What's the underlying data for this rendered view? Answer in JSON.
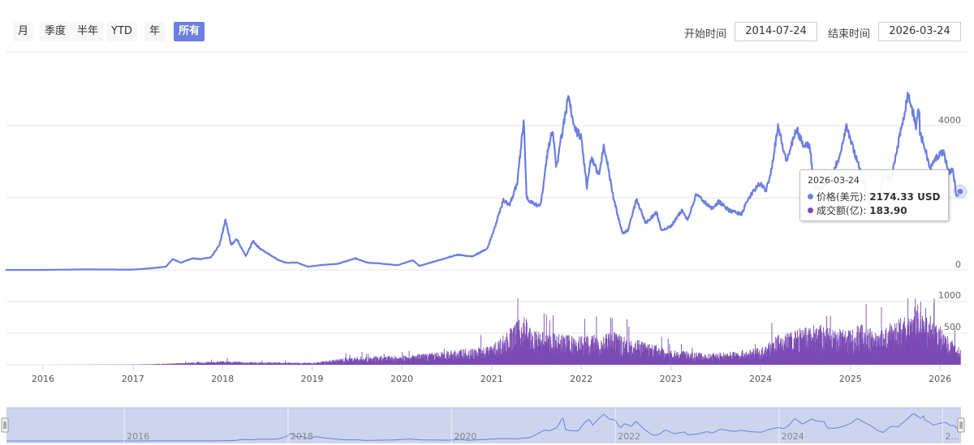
{
  "toolbar": {
    "ranges": [
      {
        "label": "月",
        "active": false
      },
      {
        "label": "季度",
        "active": false
      },
      {
        "label": "半年",
        "active": false
      },
      {
        "label": "YTD",
        "active": false
      },
      {
        "label": "年",
        "active": false
      },
      {
        "label": "所有",
        "active": true
      }
    ],
    "start_label": "开始时间",
    "start_value": "2014-07-24",
    "end_label": "结束时间",
    "end_value": "2026-03-24"
  },
  "tooltip": {
    "date": "2026-03-24",
    "price_label": "价格(美元):",
    "price_value": "2174.33 USD",
    "volume_label": "成交额(亿):",
    "volume_value": "183.90"
  },
  "colors": {
    "price": "#6a7fe0",
    "volume": "#7b4bb5",
    "active_button": "#6a7fe0",
    "navigator_mask": "#c9d3ec"
  },
  "chart_data": {
    "type": "line",
    "price_series": {
      "y_axis_ticks": [
        0,
        2000,
        4000
      ],
      "visible_tick_labels": [
        "0",
        "4000"
      ],
      "points": [
        [
          "2015-08-01",
          1
        ],
        [
          "2016-01-01",
          1
        ],
        [
          "2016-06-15",
          14
        ],
        [
          "2017-01-01",
          8
        ],
        [
          "2017-03-15",
          45
        ],
        [
          "2017-05-15",
          90
        ],
        [
          "2017-06-12",
          300
        ],
        [
          "2017-07-15",
          200
        ],
        [
          "2017-09-01",
          320
        ],
        [
          "2017-10-01",
          300
        ],
        [
          "2017-11-15",
          350
        ],
        [
          "2017-12-20",
          700
        ],
        [
          "2018-01-13",
          1390
        ],
        [
          "2018-02-05",
          700
        ],
        [
          "2018-03-01",
          850
        ],
        [
          "2018-04-06",
          380
        ],
        [
          "2018-05-05",
          800
        ],
        [
          "2018-06-01",
          600
        ],
        [
          "2018-08-15",
          280
        ],
        [
          "2018-09-15",
          200
        ],
        [
          "2018-11-01",
          200
        ],
        [
          "2018-12-15",
          90
        ],
        [
          "2019-02-15",
          140
        ],
        [
          "2019-04-15",
          170
        ],
        [
          "2019-06-26",
          320
        ],
        [
          "2019-08-15",
          200
        ],
        [
          "2019-10-01",
          180
        ],
        [
          "2019-12-15",
          130
        ],
        [
          "2020-02-15",
          270
        ],
        [
          "2020-03-13",
          110
        ],
        [
          "2020-05-01",
          210
        ],
        [
          "2020-08-15",
          420
        ],
        [
          "2020-10-15",
          370
        ],
        [
          "2020-12-15",
          600
        ],
        [
          "2021-01-15",
          1200
        ],
        [
          "2021-02-19",
          1950
        ],
        [
          "2021-03-15",
          1800
        ],
        [
          "2021-04-15",
          2400
        ],
        [
          "2021-05-12",
          4200
        ],
        [
          "2021-05-23",
          2000
        ],
        [
          "2021-06-25",
          1800
        ],
        [
          "2021-07-20",
          1800
        ],
        [
          "2021-08-15",
          3200
        ],
        [
          "2021-09-07",
          3900
        ],
        [
          "2021-09-21",
          2800
        ],
        [
          "2021-10-15",
          3800
        ],
        [
          "2021-11-10",
          4800
        ],
        [
          "2021-12-04",
          3900
        ],
        [
          "2021-12-31",
          3700
        ],
        [
          "2022-01-24",
          2300
        ],
        [
          "2022-02-10",
          3100
        ],
        [
          "2022-03-15",
          2600
        ],
        [
          "2022-04-03",
          3500
        ],
        [
          "2022-05-12",
          2000
        ],
        [
          "2022-06-18",
          1000
        ],
        [
          "2022-07-10",
          1100
        ],
        [
          "2022-08-14",
          1950
        ],
        [
          "2022-09-20",
          1300
        ],
        [
          "2022-11-05",
          1600
        ],
        [
          "2022-11-21",
          1100
        ],
        [
          "2022-12-31",
          1200
        ],
        [
          "2023-02-15",
          1650
        ],
        [
          "2023-03-10",
          1400
        ],
        [
          "2023-04-15",
          2100
        ],
        [
          "2023-06-15",
          1700
        ],
        [
          "2023-07-15",
          1900
        ],
        [
          "2023-08-25",
          1650
        ],
        [
          "2023-10-15",
          1550
        ],
        [
          "2023-11-15",
          2000
        ],
        [
          "2023-12-28",
          2400
        ],
        [
          "2024-01-23",
          2200
        ],
        [
          "2024-02-15",
          2800
        ],
        [
          "2024-03-12",
          4000
        ],
        [
          "2024-04-15",
          3000
        ],
        [
          "2024-05-27",
          3900
        ],
        [
          "2024-06-20",
          3500
        ],
        [
          "2024-07-20",
          3450
        ],
        [
          "2024-08-05",
          2300
        ],
        [
          "2024-09-06",
          2250
        ],
        [
          "2024-10-15",
          2600
        ],
        [
          "2024-11-15",
          3100
        ],
        [
          "2024-12-16",
          4000
        ],
        [
          "2025-01-15",
          3300
        ],
        [
          "2025-02-15",
          2700
        ],
        [
          "2025-03-15",
          1900
        ],
        [
          "2025-04-09",
          1500
        ],
        [
          "2025-05-15",
          2600
        ],
        [
          "2025-06-15",
          2500
        ],
        [
          "2025-07-15",
          3500
        ],
        [
          "2025-08-24",
          4900
        ],
        [
          "2025-09-25",
          4000
        ],
        [
          "2025-10-08",
          4500
        ],
        [
          "2025-10-11",
          3800
        ],
        [
          "2025-11-04",
          3300
        ],
        [
          "2025-11-21",
          2800
        ],
        [
          "2025-12-15",
          3100
        ],
        [
          "2026-01-15",
          3300
        ],
        [
          "2026-02-05",
          2700
        ],
        [
          "2026-02-20",
          2800
        ],
        [
          "2026-03-10",
          2100
        ],
        [
          "2026-03-24",
          2174.33
        ]
      ]
    },
    "volume_series": {
      "unit": "亿",
      "y_axis_ticks": [
        0,
        500,
        1000
      ],
      "visible_tick_labels": [
        "500",
        "1000"
      ],
      "points": [
        [
          "2016-01-01",
          0
        ],
        [
          "2016-06-01",
          1
        ],
        [
          "2017-01-01",
          2
        ],
        [
          "2017-06-01",
          15
        ],
        [
          "2017-12-31",
          45
        ],
        [
          "2018-06-01",
          30
        ],
        [
          "2018-12-31",
          25
        ],
        [
          "2019-06-01",
          90
        ],
        [
          "2019-12-31",
          110
        ],
        [
          "2020-06-01",
          150
        ],
        [
          "2020-12-31",
          230
        ],
        [
          "2021-05-15",
          600
        ],
        [
          "2021-06-15",
          400
        ],
        [
          "2021-12-31",
          340
        ],
        [
          "2022-05-15",
          380
        ],
        [
          "2022-12-31",
          180
        ],
        [
          "2023-06-01",
          130
        ],
        [
          "2023-12-31",
          200
        ],
        [
          "2024-03-15",
          360
        ],
        [
          "2024-08-05",
          480
        ],
        [
          "2024-12-15",
          420
        ],
        [
          "2025-02-15",
          500
        ],
        [
          "2025-04-15",
          380
        ],
        [
          "2025-08-15",
          610
        ],
        [
          "2025-10-11",
          750
        ],
        [
          "2026-01-15",
          400
        ],
        [
          "2026-03-24",
          183.9
        ]
      ]
    },
    "x_axis_labels": [
      "2016",
      "2017",
      "2018",
      "2019",
      "2020",
      "2021",
      "2022",
      "2023",
      "2024",
      "2025",
      "2026"
    ],
    "navigator": {
      "x_axis_labels": [
        "2016",
        "2018",
        "2020",
        "2022",
        "2024",
        "2..."
      ],
      "selected_range": [
        "2014-07-24",
        "2026-03-24"
      ]
    },
    "grid": true
  }
}
